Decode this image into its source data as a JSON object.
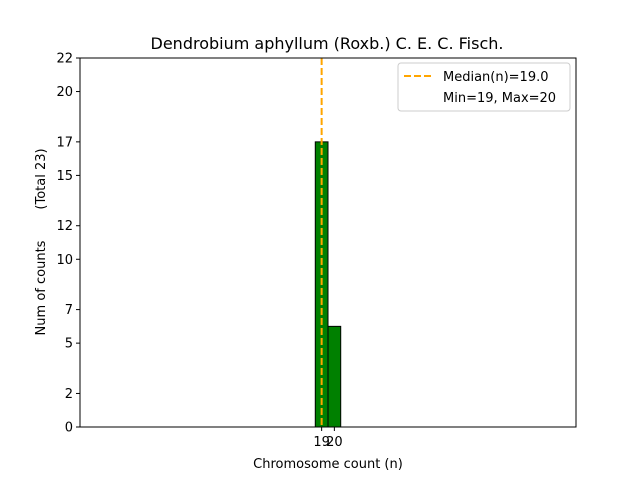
{
  "chart_data": {
    "type": "bar",
    "title": "Dendrobium aphyllum (Roxb.) C. E. C. Fisch.",
    "xlabel": "Chromosome count (n)",
    "ylabel": "Num of counts",
    "ylabel_total": "(Total 23)",
    "bins": [
      {
        "x": 19,
        "count": 17
      },
      {
        "x": 20,
        "count": 6
      }
    ],
    "xticks": [
      19,
      20
    ],
    "yticks": [
      0,
      2,
      5,
      7,
      10,
      12,
      15,
      17,
      20,
      22
    ],
    "ylim": [
      0,
      22
    ],
    "median": 19.0,
    "legend": {
      "position": "top-right",
      "entries": [
        "Median(n)=19.0",
        "Min=19, Max=20"
      ]
    },
    "colors": {
      "bar_fill": "#008000",
      "bar_edge": "#000000",
      "median_line": "#FFA500"
    }
  }
}
